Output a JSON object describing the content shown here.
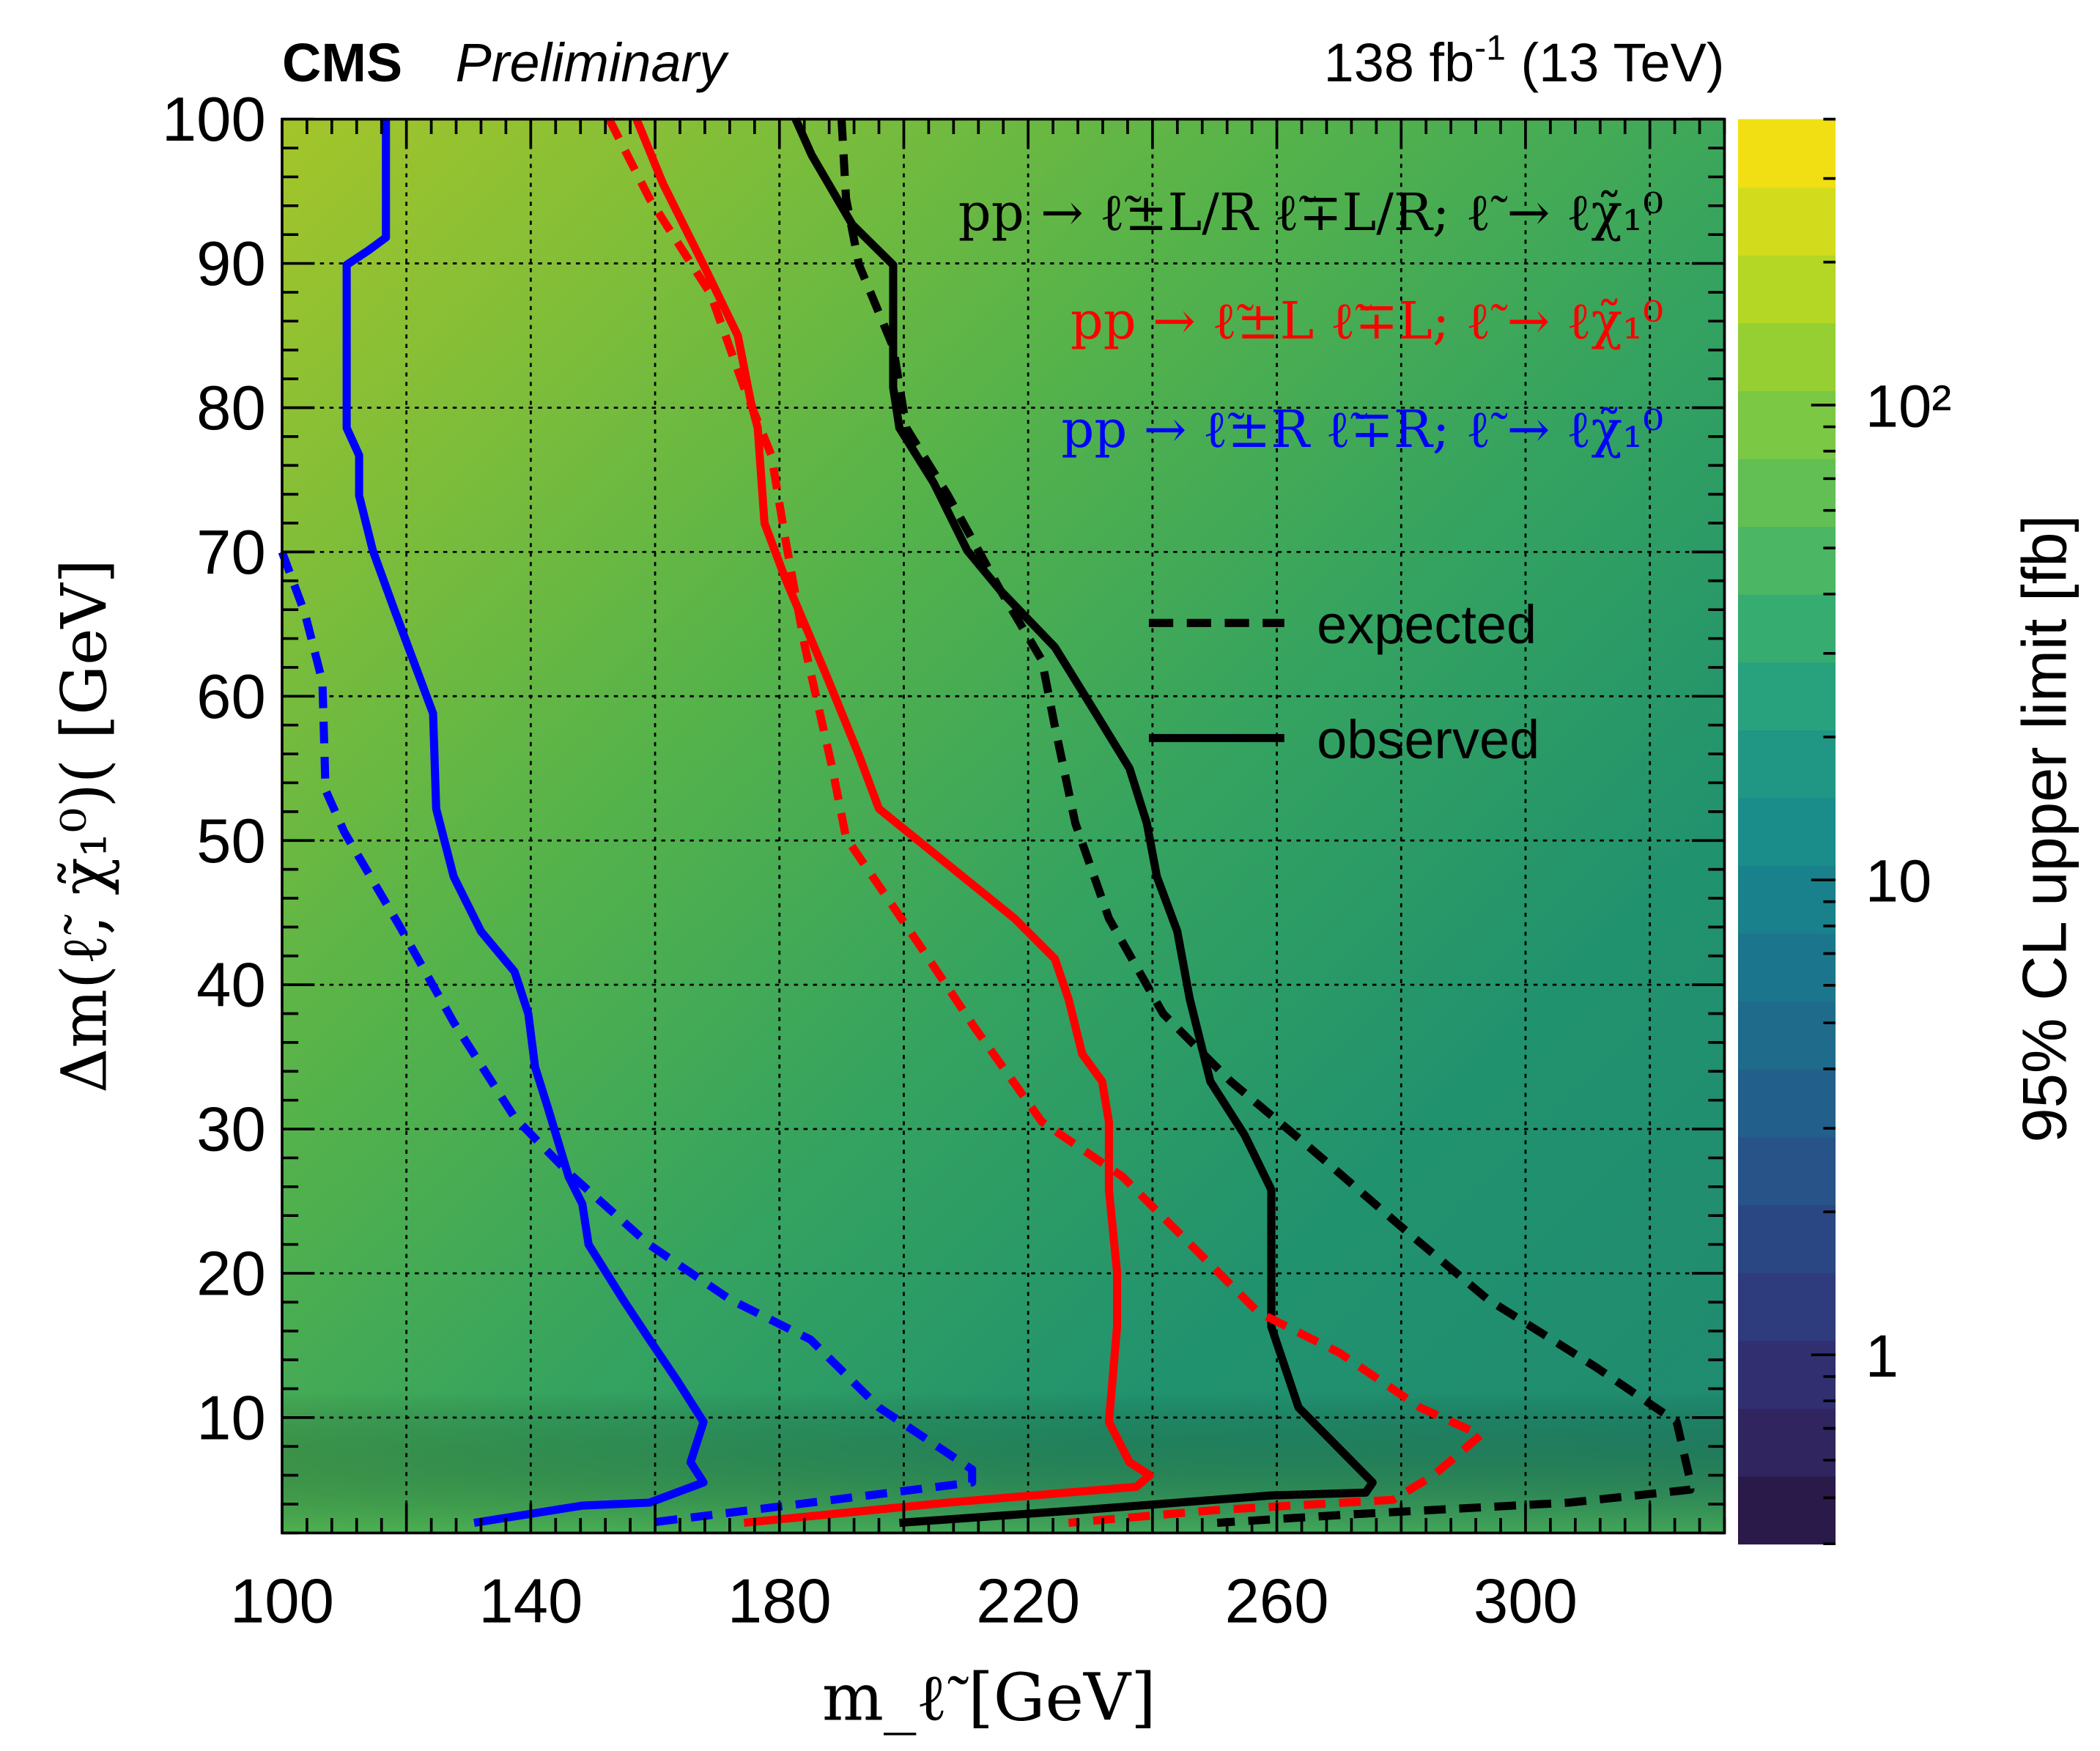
{
  "header": {
    "experiment": "CMS",
    "status": "Preliminary",
    "lumi": "138 fb",
    "lumi_exp": "-1",
    "energy": " (13 TeV)"
  },
  "chart_data": {
    "type": "heatmap",
    "xlabel": "m_ℓ̃ [GeV]",
    "ylabel": "Δm(ℓ̃, χ̃₁⁰)( [GeV]",
    "zlabel": "95% CL upper limit [fb]",
    "xlim": [
      100,
      332
    ],
    "ylim": [
      2,
      100
    ],
    "zlim": [
      0.4,
      400
    ],
    "z_log": true,
    "grid": true,
    "colormap": "viridis",
    "x_ticks": [
      "100",
      "140",
      "180",
      "220",
      "260",
      "300"
    ],
    "y_ticks": [
      "10",
      "20",
      "30",
      "40",
      "50",
      "60",
      "70",
      "80",
      "90",
      "100"
    ],
    "z_ticks": [
      "1",
      "10",
      "10²"
    ],
    "legend": {
      "placement": "top-right",
      "processes": [
        {
          "label": "pp → ℓ̃±L/R ℓ̃∓L/R; ℓ̃ → ℓχ̃₁⁰",
          "color": "#000000"
        },
        {
          "label": "pp → ℓ̃±L ℓ̃∓L; ℓ̃ → ℓχ̃₁⁰",
          "color": "#ff0000"
        },
        {
          "label": "pp → ℓ̃±R ℓ̃∓R; ℓ̃ → ℓχ̃₁⁰",
          "color": "#0000ff"
        }
      ],
      "styles": [
        {
          "label": "expected",
          "dash": true
        },
        {
          "label": "observed",
          "dash": false
        }
      ]
    },
    "series": [
      {
        "process": "L/R",
        "kind": "observed",
        "color": "#000000",
        "points": [
          [
            182.6,
            100
          ],
          [
            185.2,
            97.5
          ],
          [
            191.7,
            92.7
          ],
          [
            198.3,
            89.9
          ],
          [
            198.3,
            81.4
          ],
          [
            199.3,
            78.6
          ],
          [
            204.8,
            74.8
          ],
          [
            210.2,
            70.1
          ],
          [
            215.6,
            67.3
          ],
          [
            224.3,
            63.4
          ],
          [
            230.9,
            58.8
          ],
          [
            236.3,
            55
          ],
          [
            239.1,
            51.2
          ],
          [
            240.7,
            47.5
          ],
          [
            244,
            43.7
          ],
          [
            246,
            39
          ],
          [
            249.3,
            33.3
          ],
          [
            254.8,
            29.6
          ],
          [
            259.1,
            25.8
          ],
          [
            259.1,
            16.3
          ],
          [
            263.5,
            10.7
          ],
          [
            272.2,
            6.9
          ],
          [
            275.4,
            5.5
          ],
          [
            274.3,
            4.8
          ],
          [
            259.1,
            4.6
          ],
          [
            228.7,
            3.6
          ],
          [
            199.3,
            2.7
          ]
        ]
      },
      {
        "process": "L/R",
        "kind": "expected",
        "color": "#000000",
        "points": [
          [
            190,
            100
          ],
          [
            190.7,
            94.5
          ],
          [
            192.8,
            89.9
          ],
          [
            198.3,
            84.2
          ],
          [
            200.4,
            78.6
          ],
          [
            207,
            74
          ],
          [
            215.6,
            67.3
          ],
          [
            222.2,
            62.5
          ],
          [
            224.3,
            57.9
          ],
          [
            227.6,
            51.2
          ],
          [
            233,
            44.6
          ],
          [
            241.7,
            38
          ],
          [
            252.6,
            33.3
          ],
          [
            265.6,
            28.6
          ],
          [
            280.9,
            22.9
          ],
          [
            293.9,
            18.2
          ],
          [
            311.3,
            13.5
          ],
          [
            324.3,
            9.7
          ],
          [
            326.3,
            6
          ],
          [
            326.5,
            5
          ],
          [
            307,
            4.1
          ],
          [
            272.2,
            3.3
          ],
          [
            250.4,
            2.7
          ]
        ]
      },
      {
        "process": "L",
        "kind": "observed",
        "color": "#ff0000",
        "points": [
          [
            157,
            100
          ],
          [
            161.3,
            95.5
          ],
          [
            167.8,
            89.9
          ],
          [
            173.3,
            85
          ],
          [
            175.4,
            80.4
          ],
          [
            176.5,
            78.6
          ],
          [
            177.6,
            72
          ],
          [
            180.9,
            68.2
          ],
          [
            187.4,
            61.6
          ],
          [
            192.8,
            55.9
          ],
          [
            196,
            52.2
          ],
          [
            206.9,
            48.4
          ],
          [
            217.8,
            44.6
          ],
          [
            224.3,
            41.8
          ],
          [
            226.5,
            39
          ],
          [
            228.7,
            35.2
          ],
          [
            231.9,
            33.3
          ],
          [
            233,
            30.5
          ],
          [
            233,
            25.8
          ],
          [
            234.3,
            20.1
          ],
          [
            234.3,
            16.3
          ],
          [
            233,
            9.7
          ],
          [
            236.3,
            6.9
          ],
          [
            239.6,
            6
          ],
          [
            237.4,
            5.2
          ],
          [
            207,
            4.1
          ],
          [
            174.3,
            2.7
          ]
        ]
      },
      {
        "process": "L",
        "kind": "expected",
        "color": "#ff0000",
        "points": [
          [
            152.6,
            100
          ],
          [
            159.1,
            94.5
          ],
          [
            168.9,
            87.9
          ],
          [
            174.3,
            81.4
          ],
          [
            178.7,
            76.7
          ],
          [
            180.9,
            71
          ],
          [
            184.1,
            63.4
          ],
          [
            188.5,
            55
          ],
          [
            190.7,
            50.2
          ],
          [
            202.6,
            42.7
          ],
          [
            211.3,
            37.1
          ],
          [
            222.2,
            30.5
          ],
          [
            235.2,
            26.7
          ],
          [
            246.1,
            22
          ],
          [
            257,
            17.3
          ],
          [
            270,
            14.5
          ],
          [
            283,
            10.7
          ],
          [
            292.8,
            8.8
          ],
          [
            285.2,
            6
          ],
          [
            278.7,
            4.3
          ],
          [
            250.4,
            3.6
          ],
          [
            226.5,
            2.7
          ]
        ]
      },
      {
        "process": "R",
        "kind": "observed",
        "color": "#0000ff",
        "points": [
          [
            116.7,
            100
          ],
          [
            116.7,
            91.8
          ],
          [
            113.9,
            90.9
          ],
          [
            110.4,
            89.9
          ],
          [
            110.4,
            78.6
          ],
          [
            112.4,
            76.7
          ],
          [
            112.4,
            73.9
          ],
          [
            114.6,
            70.1
          ],
          [
            117.8,
            66.3
          ],
          [
            124.3,
            58.8
          ],
          [
            124.8,
            52.2
          ],
          [
            127.6,
            47.5
          ],
          [
            132,
            43.7
          ],
          [
            137.4,
            40.9
          ],
          [
            139.6,
            38
          ],
          [
            140.7,
            34.3
          ],
          [
            142.8,
            31.4
          ],
          [
            146.1,
            26.7
          ],
          [
            148.3,
            24.8
          ],
          [
            149.3,
            22
          ],
          [
            154.8,
            18.2
          ],
          [
            159.1,
            15.4
          ],
          [
            163.5,
            12.6
          ],
          [
            167.8,
            9.7
          ],
          [
            165.7,
            6.9
          ],
          [
            167.8,
            5.5
          ],
          [
            159.1,
            4.1
          ],
          [
            148.3,
            3.9
          ],
          [
            130.9,
            2.7
          ]
        ]
      },
      {
        "process": "R",
        "kind": "expected",
        "color": "#0000ff",
        "points": [
          [
            100,
            70
          ],
          [
            103.7,
            65.7
          ],
          [
            106.5,
            61
          ],
          [
            107,
            53.5
          ],
          [
            110,
            50.6
          ],
          [
            119,
            44
          ],
          [
            127.6,
            37.4
          ],
          [
            137.4,
            30.8
          ],
          [
            146,
            27
          ],
          [
            159,
            22
          ],
          [
            172,
            18.2
          ],
          [
            185,
            15.4
          ],
          [
            196,
            10.7
          ],
          [
            211,
            6.4
          ],
          [
            211,
            5.5
          ],
          [
            185,
            4.1
          ],
          [
            159,
            2.7
          ]
        ]
      }
    ]
  }
}
